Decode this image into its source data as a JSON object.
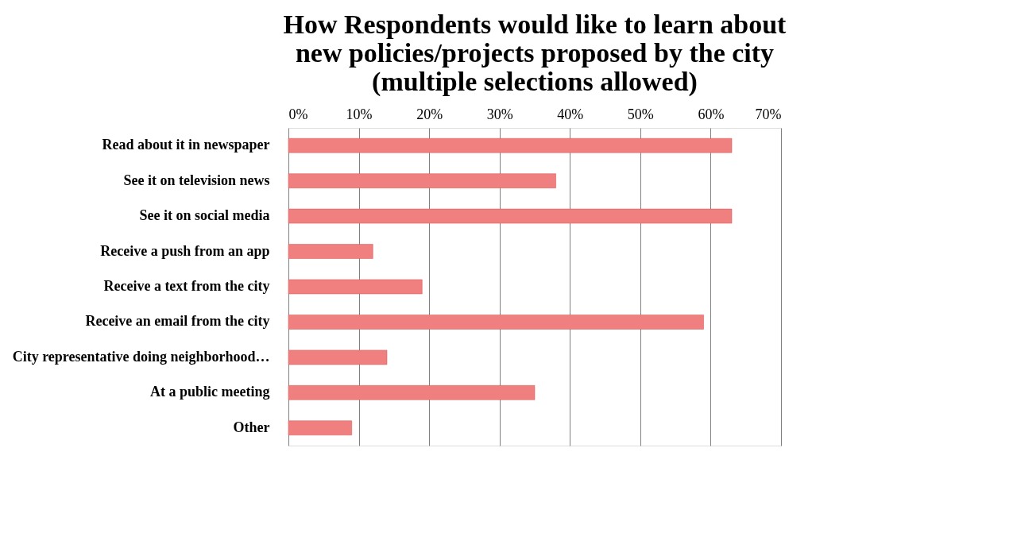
{
  "chart_data": {
    "type": "bar",
    "orientation": "horizontal",
    "title": [
      "How Respondents would like to learn about",
      "new policies/projects proposed by the city",
      "(multiple selections allowed)"
    ],
    "categories": [
      "Read about it in newspaper",
      "See it on television news",
      "See it on social media",
      "Receive a push from an app",
      "Receive a text from the city",
      "Receive an email from the city",
      "City representative  doing neighborhood…",
      "At a public meeting",
      "Other"
    ],
    "values": [
      63,
      38,
      63,
      12,
      19,
      59,
      14,
      35,
      9
    ],
    "color": "#f08080",
    "xlim": [
      0,
      70
    ],
    "xticks": [
      {
        "value": 0,
        "label": "0%"
      },
      {
        "value": 10,
        "label": "10%"
      },
      {
        "value": 20,
        "label": "20%"
      },
      {
        "value": 30,
        "label": "30%"
      },
      {
        "value": 40,
        "label": "40%"
      },
      {
        "value": 50,
        "label": "50%"
      },
      {
        "value": 60,
        "label": "60%"
      },
      {
        "value": 70,
        "label": "70%"
      }
    ],
    "grid": "x"
  }
}
